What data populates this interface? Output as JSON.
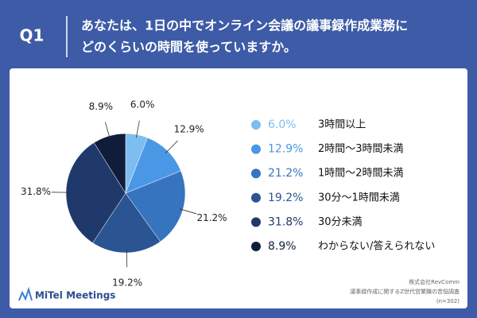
{
  "header": {
    "label": "Q1",
    "question": [
      "あなたは、1日の中でオンライン会議の議事録作成業務に",
      "どのくらいの時間を使っていますか。"
    ]
  },
  "chart_data": {
    "type": "pie",
    "categories": [
      "3時間以上",
      "2時間〜3時間未満",
      "1時間〜2時間未満",
      "30分〜1時間未満",
      "30分未満",
      "わからない/答えられない"
    ],
    "values": [
      6.0,
      12.9,
      21.2,
      19.2,
      31.8,
      8.9
    ],
    "value_labels": [
      "6.0%",
      "12.9%",
      "21.2%",
      "19.2%",
      "31.8%",
      "8.9%"
    ],
    "colors": [
      "#7dbdf0",
      "#4a97e6",
      "#3774c0",
      "#2a5592",
      "#1f3a6a",
      "#0f1d3b"
    ]
  },
  "footer": {
    "logo": "MiTel Meetings",
    "source": [
      "株式会社RevComm",
      "議事録作成に関するZ世代営業職の苦悩調査",
      "(n=302)"
    ]
  }
}
